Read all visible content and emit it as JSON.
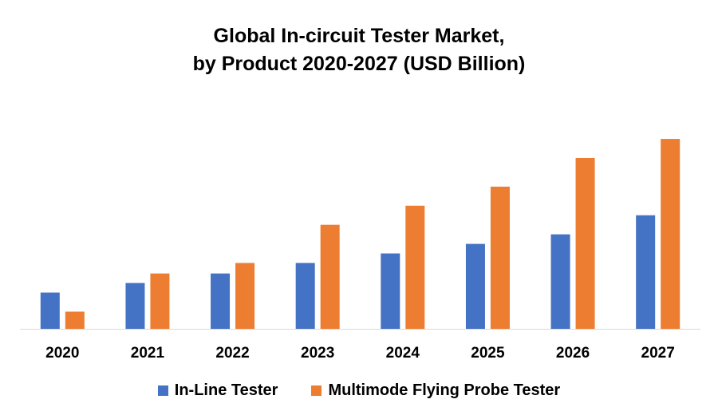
{
  "chart_data": {
    "type": "bar",
    "title_line1": "Global In-circuit Tester Market,",
    "title_line2": "by Product 2020-2027 (USD Billion)",
    "categories": [
      "2020",
      "2021",
      "2022",
      "2023",
      "2024",
      "2025",
      "2026",
      "2027"
    ],
    "series": [
      {
        "name": "In-Line Tester",
        "color": "#4472C4",
        "values": [
          0.38,
          0.48,
          0.58,
          0.69,
          0.79,
          0.89,
          0.99,
          1.19
        ]
      },
      {
        "name": "Multimode Flying Probe Tester",
        "color": "#ED7D31",
        "values": [
          0.18,
          0.58,
          0.69,
          1.09,
          1.29,
          1.49,
          1.79,
          1.99
        ]
      }
    ],
    "ylim": [
      0,
      2.3
    ],
    "grid": false,
    "y_axis_shown": false,
    "legend_position": "bottom"
  }
}
